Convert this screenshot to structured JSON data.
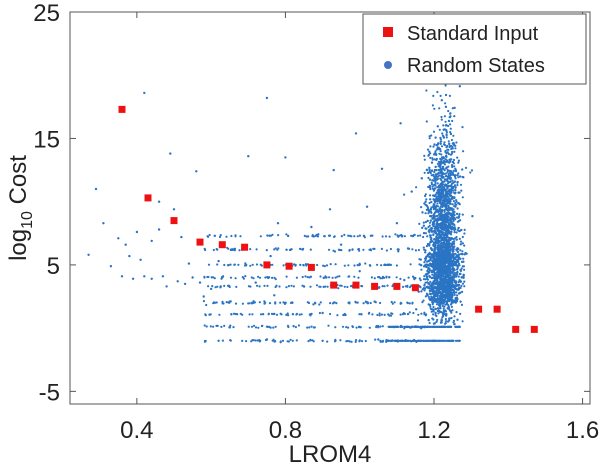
{
  "chart_data": {
    "type": "scatter",
    "xlabel": "LROM4",
    "ylabel": "log10 Cost",
    "ylabel_parts": {
      "base": "log",
      "sub": "10",
      "rest": " Cost"
    },
    "xlim": [
      0.22,
      1.62
    ],
    "ylim": [
      -6,
      25
    ],
    "x_ticks": [
      0.4,
      0.8,
      1.2,
      1.6
    ],
    "x_tick_labels": [
      "0.4",
      "0.8",
      "1.2",
      "1.6"
    ],
    "y_ticks": [
      -5,
      5,
      15,
      25
    ],
    "y_tick_labels": [
      "-5",
      "5",
      "15",
      "25"
    ],
    "grid": false,
    "legend_position": "top-right",
    "series": [
      {
        "name": "Standard Input",
        "marker": "square",
        "color": "#ee1111",
        "points": [
          [
            0.36,
            17.3
          ],
          [
            0.43,
            10.3
          ],
          [
            0.5,
            8.5
          ],
          [
            0.57,
            6.8
          ],
          [
            0.63,
            6.6
          ],
          [
            0.69,
            6.4
          ],
          [
            0.75,
            5.0
          ],
          [
            0.81,
            4.9
          ],
          [
            0.87,
            4.8
          ],
          [
            0.93,
            3.4
          ],
          [
            0.99,
            3.4
          ],
          [
            1.04,
            3.3
          ],
          [
            1.1,
            3.3
          ],
          [
            1.15,
            3.2
          ],
          [
            1.32,
            1.5
          ],
          [
            1.37,
            1.5
          ],
          [
            1.42,
            -0.1
          ],
          [
            1.47,
            -0.1
          ]
        ]
      },
      {
        "name": "Random States",
        "marker": "dot",
        "color": "#2b74c4",
        "legend_color": "#4472c4",
        "points": [
          [
            0.27,
            5.8
          ],
          [
            0.29,
            11.0
          ],
          [
            0.31,
            8.3
          ],
          [
            0.33,
            4.9
          ],
          [
            0.35,
            7.1
          ],
          [
            0.36,
            4.1
          ],
          [
            0.37,
            6.6
          ],
          [
            0.38,
            5.7
          ],
          [
            0.39,
            3.9
          ],
          [
            0.4,
            7.6
          ],
          [
            0.41,
            5.4
          ],
          [
            0.42,
            4.1
          ],
          [
            0.42,
            18.6
          ],
          [
            0.44,
            3.9
          ],
          [
            0.44,
            6.9
          ],
          [
            0.46,
            10.0
          ],
          [
            0.46,
            7.8
          ],
          [
            0.47,
            4.1
          ],
          [
            0.48,
            3.3
          ],
          [
            0.49,
            13.8
          ],
          [
            0.5,
            9.4
          ],
          [
            0.51,
            3.7
          ],
          [
            0.52,
            7.2
          ],
          [
            0.53,
            3.5
          ],
          [
            0.54,
            5.1
          ],
          [
            0.55,
            4.0
          ],
          [
            0.56,
            12.4
          ],
          [
            0.57,
            3.6
          ],
          [
            0.58,
            2.5
          ],
          [
            0.6,
            3.1
          ],
          [
            0.61,
            2.0
          ],
          [
            0.62,
            5.3
          ],
          [
            0.63,
            4.0
          ],
          [
            0.65,
            2.1
          ],
          [
            0.67,
            1.1
          ],
          [
            0.7,
            13.6
          ],
          [
            0.71,
            2.0
          ],
          [
            0.72,
            3.6
          ],
          [
            0.74,
            1.1
          ],
          [
            0.75,
            18.2
          ],
          [
            0.76,
            5.7
          ],
          [
            0.77,
            2.6
          ],
          [
            0.78,
            8.3
          ],
          [
            0.8,
            13.5
          ],
          [
            0.8,
            2.0
          ],
          [
            0.82,
            1.1
          ],
          [
            0.84,
            5.0
          ],
          [
            0.85,
            3.3
          ],
          [
            0.87,
            8.0
          ],
          [
            0.88,
            2.0
          ],
          [
            0.9,
            1.2
          ],
          [
            0.92,
            9.4
          ],
          [
            0.93,
            12.5
          ],
          [
            0.94,
            3.4
          ],
          [
            0.95,
            6.6
          ],
          [
            0.97,
            2.0
          ],
          [
            0.99,
            15.4
          ],
          [
            1.0,
            4.5
          ],
          [
            1.02,
            9.6
          ],
          [
            1.03,
            7.3
          ],
          [
            1.04,
            2.1
          ],
          [
            1.06,
            12.6
          ],
          [
            1.07,
            5.0
          ],
          [
            1.08,
            1.0
          ],
          [
            1.1,
            8.3
          ],
          [
            1.11,
            16.2
          ],
          [
            1.12,
            3.8
          ],
          [
            1.13,
            6.3
          ],
          [
            1.14,
            10.8
          ],
          [
            1.15,
            20.3
          ],
          [
            0.62,
            -1.0
          ],
          [
            0.75,
            -0.9
          ],
          [
            0.9,
            -1.0
          ],
          [
            1.05,
            -0.9
          ],
          [
            1.28,
            19.8
          ]
        ]
      }
    ]
  }
}
